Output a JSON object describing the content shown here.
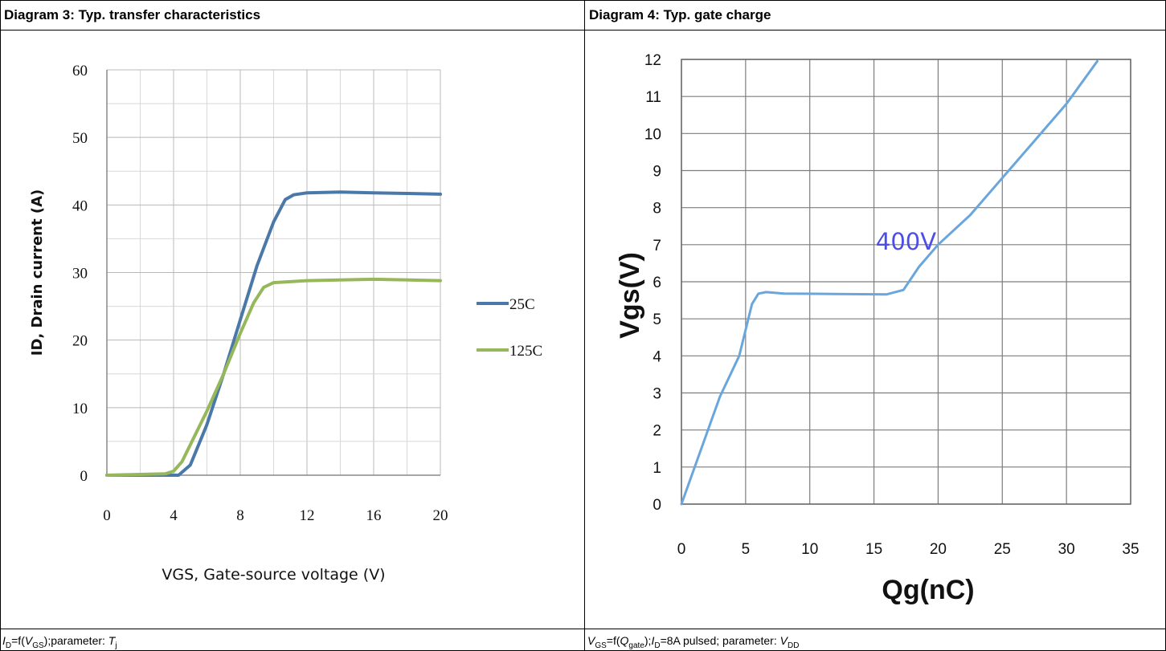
{
  "left": {
    "header": "Diagram 3: Typ. transfer characteristics",
    "footer": {
      "id": "I",
      "id_sub": "D",
      "eq": "=f(",
      "v": "V",
      "v_sub": "GS",
      "rest": ");parameter: ",
      "t": "T",
      "t_sub": "j"
    }
  },
  "right": {
    "header": "Diagram 4: Typ. gate charge",
    "footer": {
      "v": "V",
      "v_sub": "GS",
      "eq": "=f(",
      "q": "Q",
      "q_sub": "gate",
      "mid": ");",
      "i": "I",
      "i_sub": "D",
      "rest": "=8A pulsed; parameter: ",
      "vd": "V",
      "vd_sub": "DD"
    }
  },
  "chart_data": [
    {
      "type": "line",
      "title": "",
      "xlabel": "VGS, Gate-source voltage (V)",
      "ylabel": "ID, Drain current (A)",
      "xlim": [
        0,
        20
      ],
      "ylim": [
        0,
        60
      ],
      "xticks": [
        0,
        4,
        8,
        12,
        16,
        20
      ],
      "yticks": [
        0,
        10,
        20,
        30,
        40,
        50,
        60
      ],
      "grid": true,
      "legend_position": "right",
      "series": [
        {
          "name": "25C",
          "color": "#4a78a8",
          "x": [
            0,
            4.3,
            5.0,
            6.0,
            7.0,
            8.0,
            9.0,
            10.0,
            10.7,
            11.2,
            12.0,
            14.0,
            16.0,
            18.0,
            20.0
          ],
          "y": [
            0,
            0,
            1.5,
            7.5,
            15,
            23,
            31,
            37.5,
            40.8,
            41.5,
            41.8,
            41.9,
            41.8,
            41.7,
            41.6
          ]
        },
        {
          "name": "125C",
          "color": "#96b85a",
          "x": [
            0,
            3.5,
            4.0,
            4.5,
            5.0,
            6.0,
            7.0,
            8.0,
            8.8,
            9.4,
            10.0,
            12.0,
            16.0,
            20.0
          ],
          "y": [
            0,
            0.2,
            0.6,
            2.0,
            4.5,
            9.5,
            15,
            21,
            25.5,
            27.8,
            28.5,
            28.8,
            29.0,
            28.8
          ]
        }
      ]
    },
    {
      "type": "line",
      "title": "",
      "xlabel": "Qg(nC)",
      "ylabel": "Vgs(V)",
      "xlim": [
        0,
        35
      ],
      "ylim": [
        0,
        12
      ],
      "xticks": [
        0,
        5,
        10,
        15,
        20,
        25,
        30,
        35
      ],
      "yticks": [
        0,
        1,
        2,
        3,
        4,
        5,
        6,
        7,
        8,
        9,
        10,
        11,
        12
      ],
      "grid": true,
      "annotation": "400V",
      "series": [
        {
          "color": "#6aa6dc",
          "x": [
            0,
            3.0,
            4.5,
            5.5,
            6.0,
            6.6,
            8.0,
            12.0,
            16.0,
            17.3,
            18.5,
            20.0,
            22.5,
            25.0,
            27.5,
            30.0,
            32.4
          ],
          "y": [
            0,
            2.9,
            4.0,
            5.4,
            5.68,
            5.72,
            5.68,
            5.67,
            5.66,
            5.78,
            6.4,
            7.0,
            7.8,
            8.8,
            9.8,
            10.8,
            11.95
          ]
        }
      ]
    }
  ]
}
